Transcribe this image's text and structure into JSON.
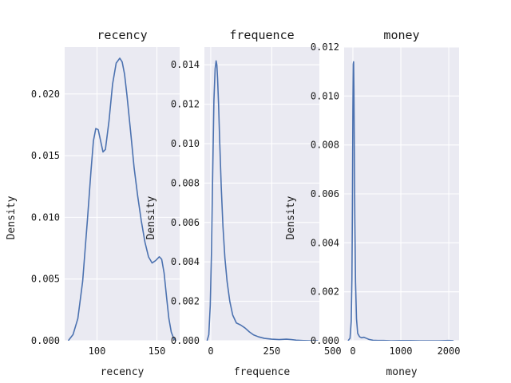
{
  "chart_data": [
    {
      "type": "line",
      "title": "recency",
      "xlabel": "recency",
      "ylabel": "Density",
      "xlim": [
        73,
        169
      ],
      "ylim": [
        0,
        0.0238
      ],
      "xticks": [
        100,
        150
      ],
      "xtick_labels": [
        "100",
        "150"
      ],
      "yticks": [
        0,
        0.005,
        0.01,
        0.015,
        0.02
      ],
      "ytick_labels": [
        "0.000",
        "0.005",
        "0.010",
        "0.015",
        "0.020"
      ],
      "grid": true,
      "series": [
        {
          "color": "#4c72b0",
          "x": [
            76,
            80,
            84,
            88,
            92,
            95,
            97,
            99,
            101,
            103,
            105,
            107,
            110,
            113,
            116,
            119,
            121,
            123,
            125,
            128,
            131,
            134,
            137,
            140,
            143,
            146,
            149,
            152,
            154,
            156,
            158,
            160,
            162,
            164,
            166
          ],
          "y": [
            0,
            0.0005,
            0.0018,
            0.0048,
            0.0098,
            0.0138,
            0.0162,
            0.0172,
            0.0171,
            0.0162,
            0.0153,
            0.0155,
            0.0178,
            0.0208,
            0.0225,
            0.0229,
            0.0226,
            0.0216,
            0.0199,
            0.017,
            0.014,
            0.0117,
            0.0097,
            0.008,
            0.0068,
            0.0063,
            0.0065,
            0.0068,
            0.0066,
            0.0055,
            0.0036,
            0.0018,
            0.0007,
            0.0002,
            0
          ]
        }
      ]
    },
    {
      "type": "line",
      "title": "frequence",
      "xlabel": "frequence",
      "ylabel": "Density",
      "xlim": [
        -26,
        445
      ],
      "ylim": [
        0,
        0.0149
      ],
      "xticks": [
        0,
        250,
        500
      ],
      "xtick_labels": [
        "0",
        "250",
        "500"
      ],
      "yticks": [
        0,
        0.002,
        0.004,
        0.006,
        0.008,
        0.01,
        0.012,
        0.014
      ],
      "ytick_labels": [
        "0.000",
        "0.002",
        "0.004",
        "0.006",
        "0.008",
        "0.010",
        "0.012",
        "0.014"
      ],
      "grid": true,
      "series": [
        {
          "color": "#4c72b0",
          "x": [
            -15,
            -8,
            -2,
            3,
            8,
            13,
            18,
            22,
            25,
            28,
            32,
            37,
            43,
            50,
            58,
            67,
            78,
            90,
            105,
            122,
            140,
            158,
            175,
            195,
            220,
            250,
            280,
            310,
            330,
            350,
            380,
            410,
            440
          ],
          "y": [
            0,
            0.0003,
            0.0018,
            0.0045,
            0.0085,
            0.0122,
            0.0138,
            0.0142,
            0.014,
            0.0133,
            0.012,
            0.01,
            0.0078,
            0.0058,
            0.0042,
            0.003,
            0.002,
            0.0013,
            0.0009,
            0.0008,
            0.00065,
            0.00045,
            0.0003,
            0.0002,
            0.00012,
            8e-05,
            6e-05,
            8e-05,
            6e-05,
            3e-05,
            1e-05,
            0,
            0
          ]
        }
      ]
    },
    {
      "type": "line",
      "title": "money",
      "xlabel": "money",
      "ylabel": "Density",
      "xlim": [
        -183,
        2216
      ],
      "ylim": [
        0,
        0.012
      ],
      "xticks": [
        0,
        1000,
        2000
      ],
      "xtick_labels": [
        "0",
        "1000",
        "2000"
      ],
      "yticks": [
        0,
        0.002,
        0.004,
        0.006,
        0.008,
        0.01,
        0.012
      ],
      "ytick_labels": [
        "0.000",
        "0.002",
        "0.004",
        "0.006",
        "0.008",
        "0.010",
        "0.012"
      ],
      "grid": true,
      "series": [
        {
          "color": "#4c72b0",
          "x": [
            -100,
            -60,
            -35,
            -20,
            -10,
            0,
            8,
            15,
            22,
            30,
            40,
            55,
            75,
            100,
            140,
            180,
            230,
            280,
            340,
            420,
            520,
            640,
            800,
            1000,
            1200,
            1400,
            1600,
            1800,
            2000,
            2100
          ],
          "y": [
            0,
            0.0001,
            0.0008,
            0.0025,
            0.0055,
            0.0095,
            0.0113,
            0.0114,
            0.0102,
            0.0078,
            0.005,
            0.0024,
            0.0009,
            0.0003,
            0.00016,
            0.00012,
            0.00014,
            0.0001,
            5e-05,
            2e-05,
            1e-05,
            1e-05,
            0,
            8e-06,
            5e-06,
            0,
            0,
            0,
            1.2e-05,
            0
          ]
        }
      ]
    }
  ]
}
